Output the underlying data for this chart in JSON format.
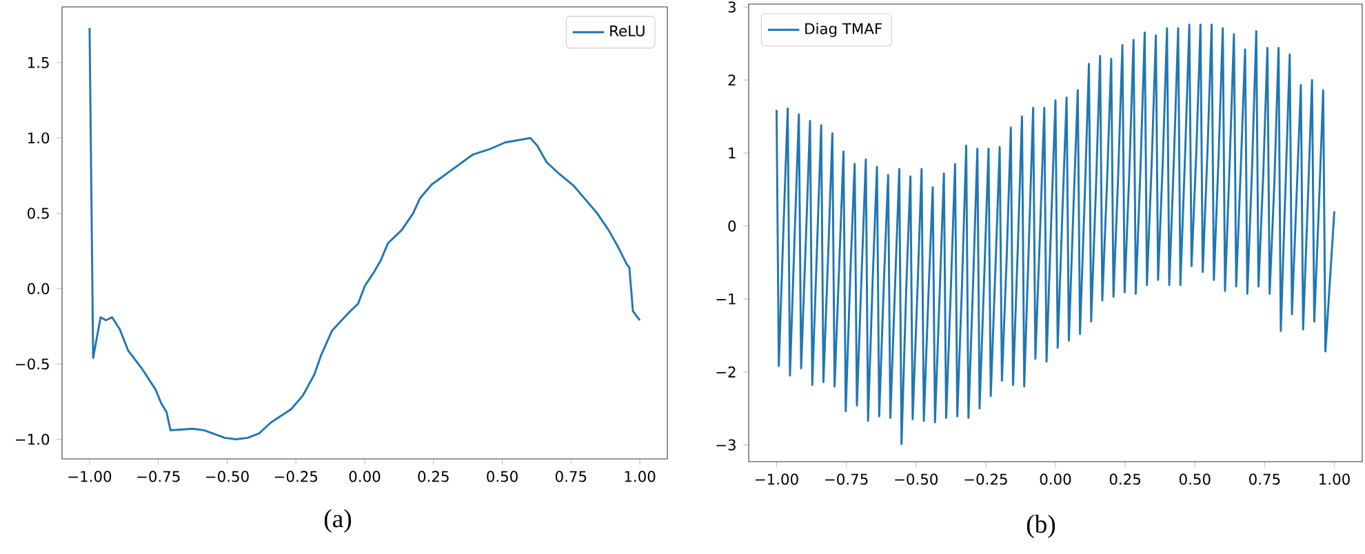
{
  "chart_data": [
    {
      "type": "line",
      "annotations": [
        "(a)"
      ],
      "legend": "top right",
      "line_style": "solid",
      "x": [
        -1.0,
        -0.987,
        -0.96,
        -0.94,
        -0.918,
        -0.89,
        -0.86,
        -0.81,
        -0.76,
        -0.74,
        -0.72,
        -0.706,
        -0.626,
        -0.584,
        -0.509,
        -0.467,
        -0.425,
        -0.383,
        -0.342,
        -0.267,
        -0.225,
        -0.183,
        -0.158,
        -0.119,
        -0.058,
        -0.024,
        0.001,
        0.034,
        0.059,
        0.084,
        0.135,
        0.176,
        0.201,
        0.243,
        0.318,
        0.393,
        0.46,
        0.51,
        0.602,
        0.627,
        0.661,
        0.702,
        0.761,
        0.803,
        0.845,
        0.886,
        0.92,
        0.953,
        0.962,
        0.975,
        1.0
      ],
      "series": [
        {
          "name": "ReLU",
          "color": "#1f77b4",
          "values": [
            1.73,
            -0.46,
            -0.19,
            -0.21,
            -0.19,
            -0.27,
            -0.41,
            -0.53,
            -0.67,
            -0.76,
            -0.82,
            -0.94,
            -0.93,
            -0.94,
            -0.99,
            -1.0,
            -0.99,
            -0.96,
            -0.89,
            -0.8,
            -0.71,
            -0.57,
            -0.44,
            -0.28,
            -0.16,
            -0.1,
            0.02,
            0.11,
            0.19,
            0.3,
            0.39,
            0.5,
            0.6,
            0.69,
            0.79,
            0.89,
            0.93,
            0.97,
            1.0,
            0.95,
            0.84,
            0.77,
            0.68,
            0.59,
            0.5,
            0.39,
            0.28,
            0.16,
            0.14,
            -0.15,
            -0.21
          ]
        }
      ],
      "xlim": [
        -1.1,
        1.1
      ],
      "ylim": [
        -1.13,
        1.87
      ],
      "xticks": [
        {
          "value": -1,
          "label": "−1.00"
        },
        {
          "value": -0.75,
          "label": "−0.75"
        },
        {
          "value": -0.5,
          "label": "−0.50"
        },
        {
          "value": -0.25,
          "label": "−0.25"
        },
        {
          "value": 0,
          "label": "0.00"
        },
        {
          "value": 0.25,
          "label": "0.25"
        },
        {
          "value": 0.5,
          "label": "0.50"
        },
        {
          "value": 0.75,
          "label": "0.75"
        },
        {
          "value": 1,
          "label": "1.00"
        }
      ],
      "yticks": [
        {
          "value": -1,
          "label": "−1.0"
        },
        {
          "value": -0.5,
          "label": "−0.5"
        },
        {
          "value": 0,
          "label": "0.0"
        },
        {
          "value": 0.5,
          "label": "0.5"
        },
        {
          "value": 1,
          "label": "1.0"
        },
        1.5
      ]
    },
    {
      "type": "line",
      "annotations": [
        "(b)"
      ],
      "legend": "top left",
      "line_style": "solid",
      "x": [
        -1,
        -0.992,
        -0.975,
        -0.96,
        -0.952,
        -0.935,
        -0.92,
        -0.912,
        -0.895,
        -0.88,
        -0.872,
        -0.855,
        -0.84,
        -0.832,
        -0.815,
        -0.8,
        -0.792,
        -0.775,
        -0.76,
        -0.752,
        -0.735,
        -0.72,
        -0.712,
        -0.695,
        -0.68,
        -0.672,
        -0.655,
        -0.64,
        -0.632,
        -0.615,
        -0.6,
        -0.592,
        -0.575,
        -0.56,
        -0.552,
        -0.535,
        -0.52,
        -0.512,
        -0.495,
        -0.48,
        -0.472,
        -0.455,
        -0.44,
        -0.432,
        -0.415,
        -0.4,
        -0.392,
        -0.375,
        -0.36,
        -0.352,
        -0.335,
        -0.32,
        -0.312,
        -0.295,
        -0.28,
        -0.272,
        -0.255,
        -0.24,
        -0.232,
        -0.215,
        -0.2,
        -0.192,
        -0.175,
        -0.16,
        -0.152,
        -0.135,
        -0.12,
        -0.112,
        -0.095,
        -0.08,
        -0.072,
        -0.055,
        -0.04,
        -0.032,
        -0.015,
        0,
        0.008,
        0.025,
        0.04,
        0.048,
        0.065,
        0.08,
        0.088,
        0.105,
        0.12,
        0.128,
        0.145,
        0.16,
        0.168,
        0.185,
        0.2,
        0.208,
        0.225,
        0.24,
        0.248,
        0.265,
        0.28,
        0.288,
        0.305,
        0.32,
        0.328,
        0.345,
        0.36,
        0.368,
        0.385,
        0.4,
        0.408,
        0.425,
        0.44,
        0.448,
        0.465,
        0.48,
        0.488,
        0.505,
        0.52,
        0.528,
        0.545,
        0.56,
        0.568,
        0.585,
        0.6,
        0.608,
        0.625,
        0.64,
        0.648,
        0.665,
        0.68,
        0.688,
        0.705,
        0.72,
        0.728,
        0.745,
        0.76,
        0.768,
        0.785,
        0.8,
        0.808,
        0.825,
        0.84,
        0.848,
        0.865,
        0.88,
        0.888,
        0.905,
        0.92,
        0.928,
        0.945,
        0.96,
        0.968,
        1.0
      ],
      "series": [
        {
          "name": "Diag TMAF",
          "color": "#1f77b4",
          "values": [
            1.59,
            -1.92,
            0,
            1.61,
            -2.05,
            -0.1,
            1.53,
            -1.95,
            -0.2,
            1.44,
            -2.18,
            -0.3,
            1.38,
            -2.14,
            -0.4,
            1.27,
            -2.2,
            -0.5,
            1.02,
            -2.54,
            -0.6,
            0.85,
            -2.46,
            -0.65,
            0.91,
            -2.67,
            -0.7,
            0.81,
            -2.61,
            -0.75,
            0.7,
            -2.63,
            -0.8,
            0.78,
            -2.99,
            -0.85,
            0.68,
            -2.65,
            -0.9,
            0.78,
            -2.67,
            -0.9,
            0.53,
            -2.69,
            -0.9,
            0.72,
            -2.63,
            -0.85,
            0.85,
            -2.61,
            -0.8,
            1.1,
            -2.63,
            -0.75,
            1.06,
            -2.5,
            -0.65,
            1.06,
            -2.33,
            -0.55,
            1.08,
            -2.12,
            -0.45,
            1.35,
            -2.18,
            -0.3,
            1.5,
            -2.2,
            -0.2,
            1.62,
            -1.82,
            -0.05,
            1.62,
            -1.86,
            0.1,
            1.72,
            -1.67,
            0.2,
            1.76,
            -1.57,
            0.3,
            1.86,
            -1.48,
            0.4,
            2.22,
            -1.31,
            0.5,
            2.33,
            -1.02,
            0.6,
            2.29,
            -0.97,
            0.7,
            2.48,
            -0.91,
            0.75,
            2.55,
            -0.93,
            0.8,
            2.65,
            -0.81,
            0.85,
            2.61,
            -0.74,
            0.9,
            2.71,
            -0.81,
            0.95,
            2.71,
            -0.81,
            1.0,
            2.76,
            -0.55,
            1.0,
            2.76,
            -0.63,
            1.0,
            2.76,
            -0.74,
            0.95,
            2.71,
            -0.89,
            0.9,
            2.63,
            -0.83,
            0.85,
            2.42,
            -0.93,
            0.8,
            2.67,
            -0.83,
            0.7,
            2.44,
            -0.93,
            0.6,
            2.44,
            -1.44,
            0.55,
            2.35,
            -1.21,
            0.45,
            1.93,
            -1.42,
            0.35,
            2.0,
            -1.31,
            0.3,
            1.86,
            -1.72,
            0.2
          ]
        }
      ],
      "xlim": [
        -1.1,
        1.1
      ],
      "ylim": [
        -3.23,
        3.04
      ],
      "xticks": [
        {
          "value": -1,
          "label": "−1.00"
        },
        {
          "value": -0.75,
          "label": "−0.75"
        },
        {
          "value": -0.5,
          "label": "−0.50"
        },
        {
          "value": -0.25,
          "label": "−0.25"
        },
        {
          "value": 0,
          "label": "0.00"
        },
        {
          "value": 0.25,
          "label": "0.25"
        },
        {
          "value": 0.5,
          "label": "0.50"
        },
        {
          "value": 0.75,
          "label": "0.75"
        },
        {
          "value": 1,
          "label": "1.00"
        }
      ],
      "yticks": [
        {
          "value": -3,
          "label": "−3"
        },
        {
          "value": -2,
          "label": "−2"
        },
        {
          "value": -1,
          "label": "−1"
        },
        0,
        1,
        2,
        3
      ]
    }
  ]
}
